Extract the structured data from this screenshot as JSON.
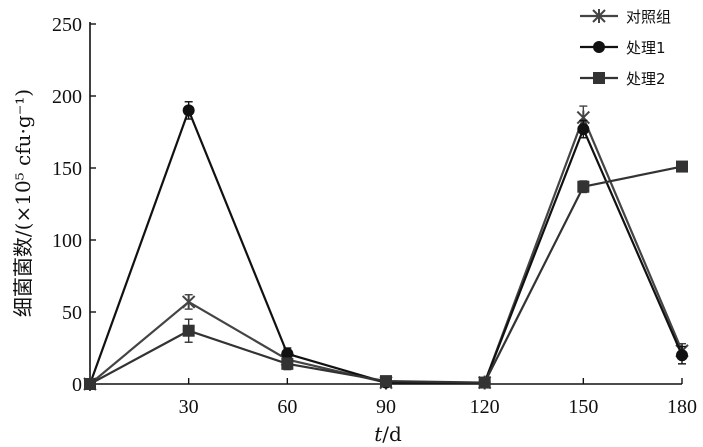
{
  "chart_data": {
    "type": "line",
    "x": [
      0,
      30,
      60,
      90,
      120,
      150,
      180
    ],
    "x_tick_labels": [
      "30",
      "60",
      "90",
      "120",
      "150",
      "180"
    ],
    "y_tick_labels": [
      "0",
      "50",
      "100",
      "150",
      "200",
      "250"
    ],
    "xlim": [
      0,
      180
    ],
    "ylim": [
      0,
      250
    ],
    "xlabel_italic": "t",
    "xlabel_rest": "/d",
    "ylabel": "细菌菌数/(×10⁵ cfu·g⁻¹)",
    "grid": false,
    "legend_position": "top-right",
    "series": [
      {
        "name": "对照组",
        "marker": "asterisk",
        "color": "#444444",
        "values": [
          0,
          57,
          17,
          1,
          1,
          185,
          23
        ],
        "errors": [
          0,
          5,
          3,
          1,
          2,
          8,
          5
        ]
      },
      {
        "name": "处理1",
        "marker": "circle",
        "color": "#111111",
        "values": [
          0,
          190,
          21,
          1,
          1,
          177,
          20
        ],
        "errors": [
          0,
          6,
          4,
          1,
          2,
          6,
          6
        ]
      },
      {
        "name": "处理2",
        "marker": "square",
        "color": "#333333",
        "values": [
          0,
          37,
          14,
          2,
          1,
          137,
          151
        ],
        "errors": [
          0,
          8,
          4,
          1,
          1,
          4,
          3
        ]
      }
    ]
  }
}
